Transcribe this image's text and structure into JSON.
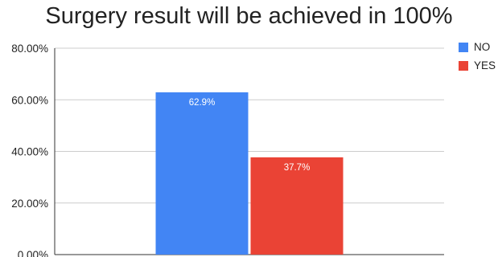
{
  "chart_data": {
    "type": "bar",
    "title": "Surgery result will be achieved in 100%",
    "xlabel": "",
    "ylabel": "",
    "ylim": [
      0,
      80
    ],
    "yticks": [
      "0.00%",
      "20.00%",
      "40.00%",
      "60.00%",
      "80.00%"
    ],
    "ytick_values": [
      0,
      20,
      40,
      60,
      80
    ],
    "grid": true,
    "legend_position": "right",
    "series": [
      {
        "name": "NO",
        "values": [
          62.9
        ],
        "data_label": "62.9%",
        "color": "#4285f4"
      },
      {
        "name": "YES",
        "values": [
          37.7
        ],
        "data_label": "37.7%",
        "color": "#ea4335"
      }
    ]
  }
}
